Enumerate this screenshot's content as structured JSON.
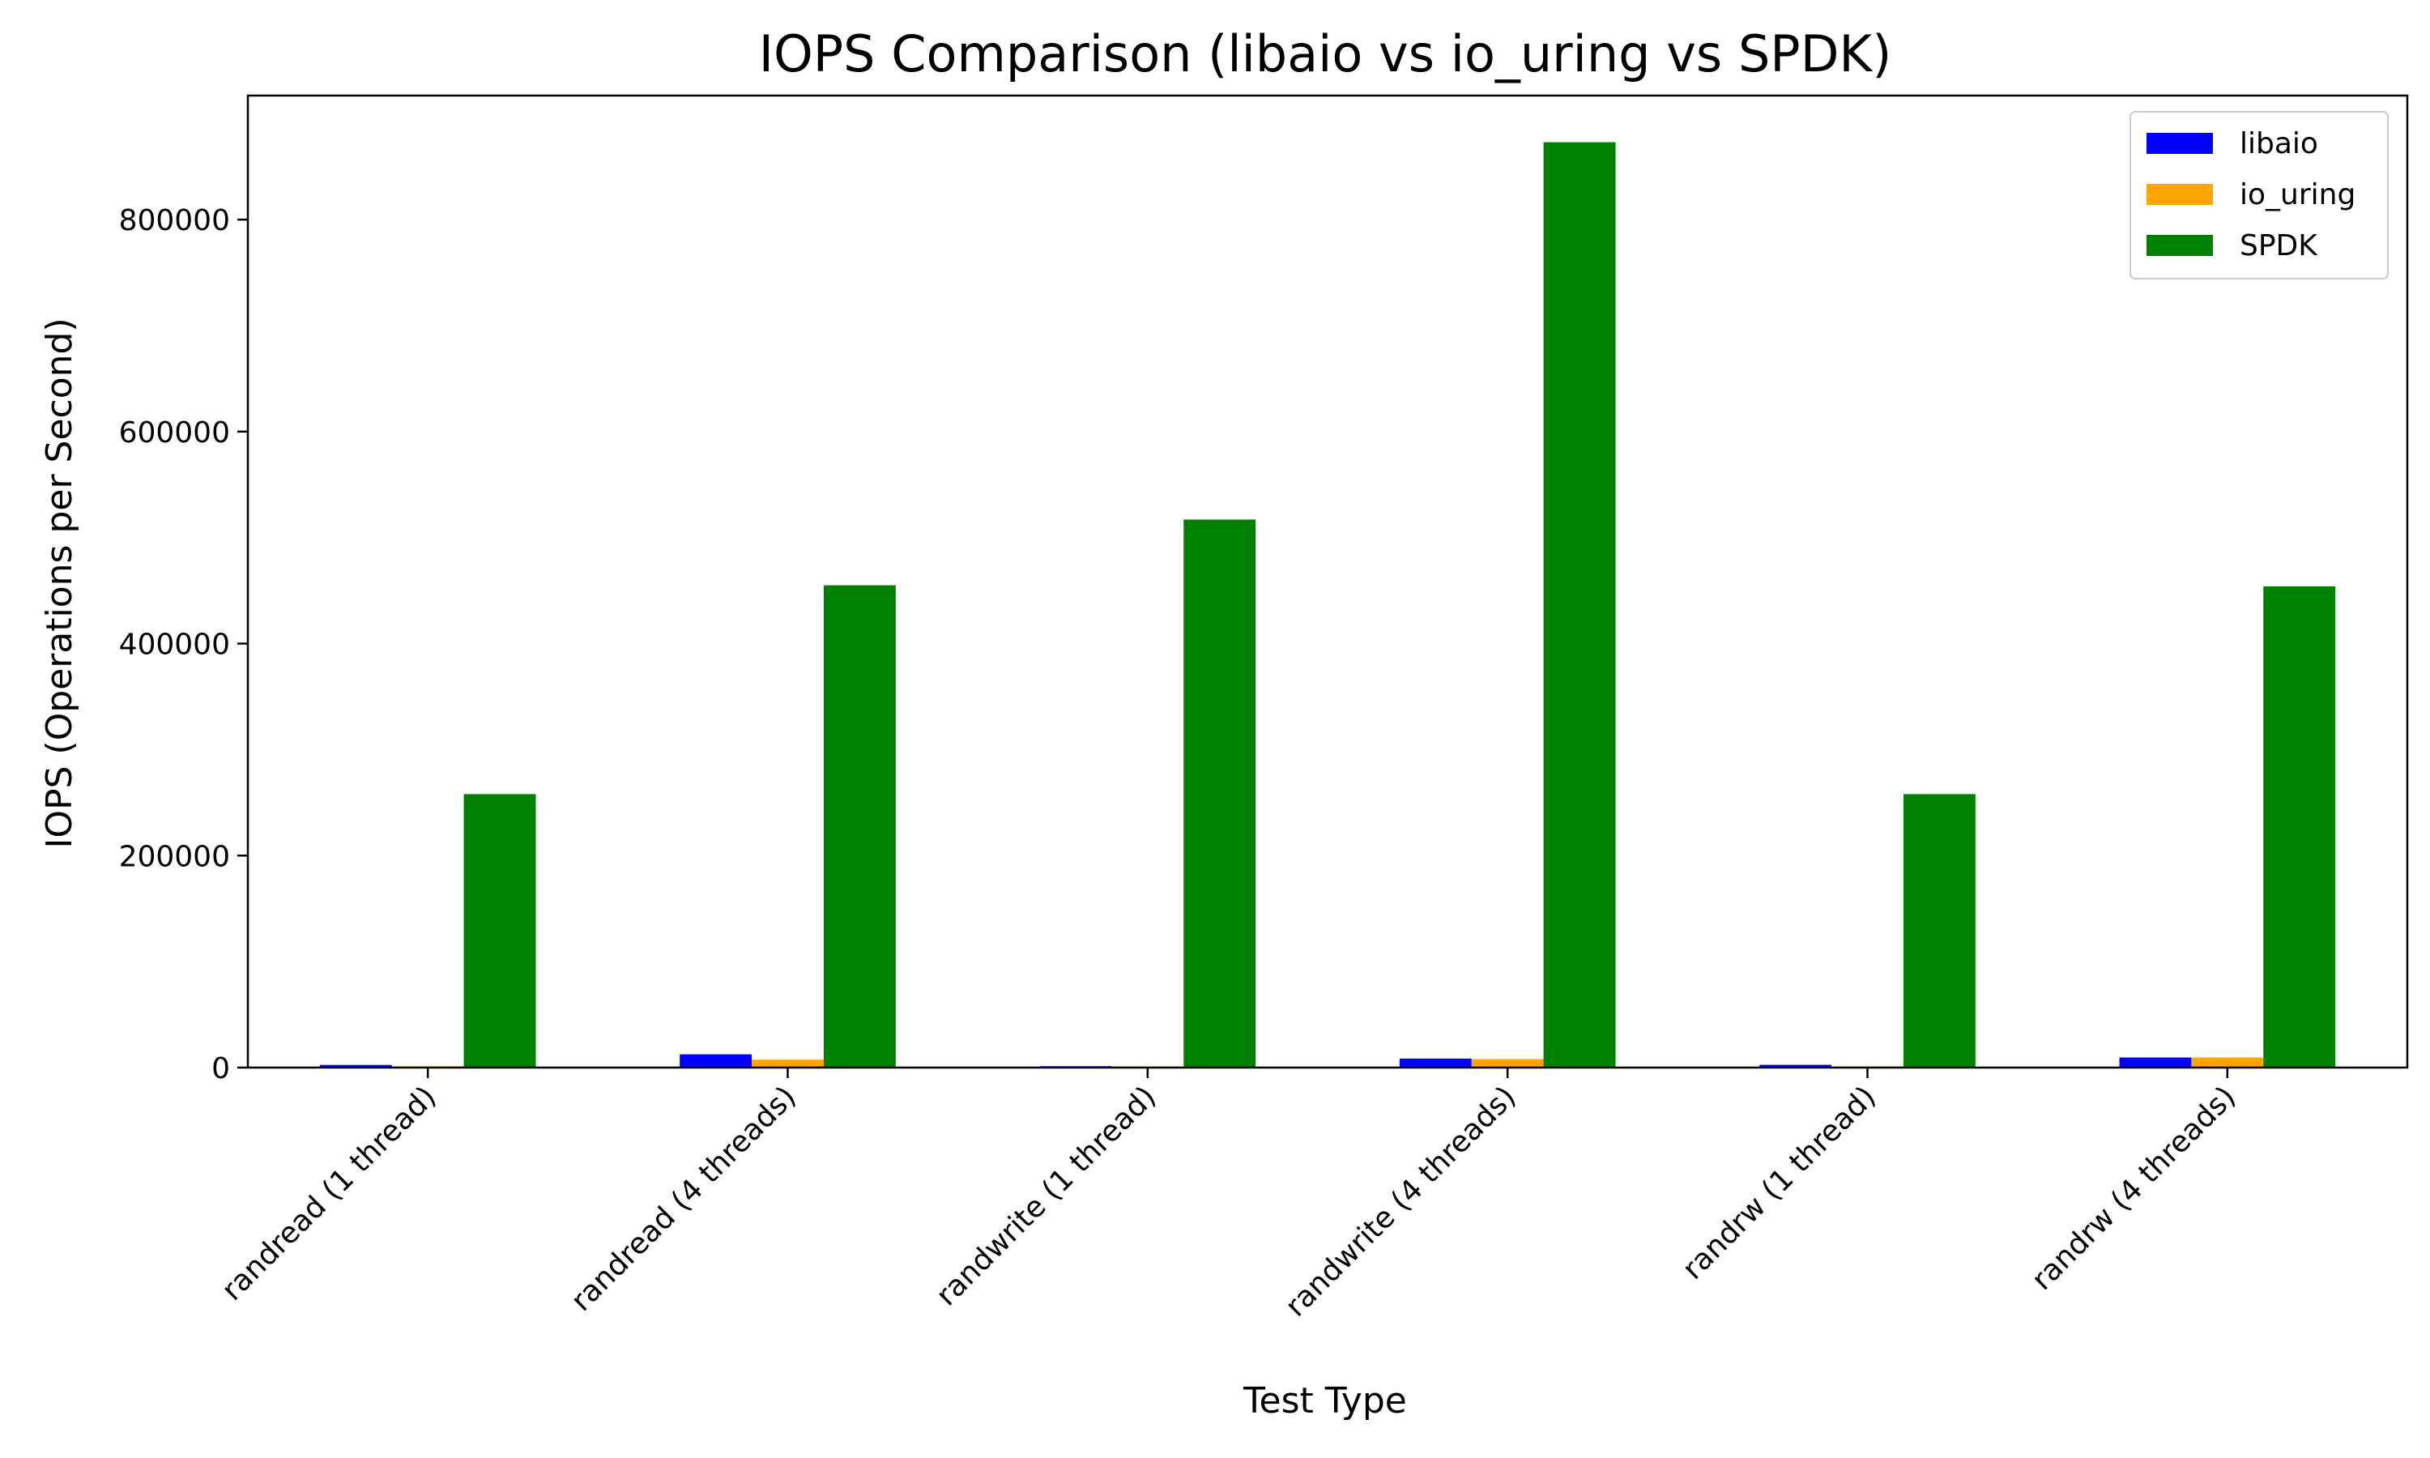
{
  "chart_data": {
    "type": "bar",
    "title": "IOPS Comparison (libaio vs io_uring vs SPDK)",
    "xlabel": "Test Type",
    "ylabel": "IOPS (Operations per Second)",
    "categories": [
      "randread (1 thread)",
      "randread (4 threads)",
      "randwrite (1 thread)",
      "randwrite (4 threads)",
      "randrw (1 thread)",
      "randrw (4 threads)"
    ],
    "series": [
      {
        "name": "libaio",
        "color": "#0000ff",
        "values": [
          2500,
          12500,
          1300,
          8500,
          2600,
          9500
        ]
      },
      {
        "name": "io_uring",
        "color": "#ffa500",
        "values": [
          1200,
          7500,
          1000,
          8000,
          1000,
          9500
        ]
      },
      {
        "name": "SPDK",
        "color": "#008000",
        "values": [
          258000,
          455000,
          517000,
          873000,
          258000,
          454000
        ]
      }
    ],
    "ylim": [
      0,
      917000
    ],
    "yticks": [
      0,
      200000,
      400000,
      600000,
      800000
    ],
    "grid": false,
    "legend": "top-right"
  }
}
